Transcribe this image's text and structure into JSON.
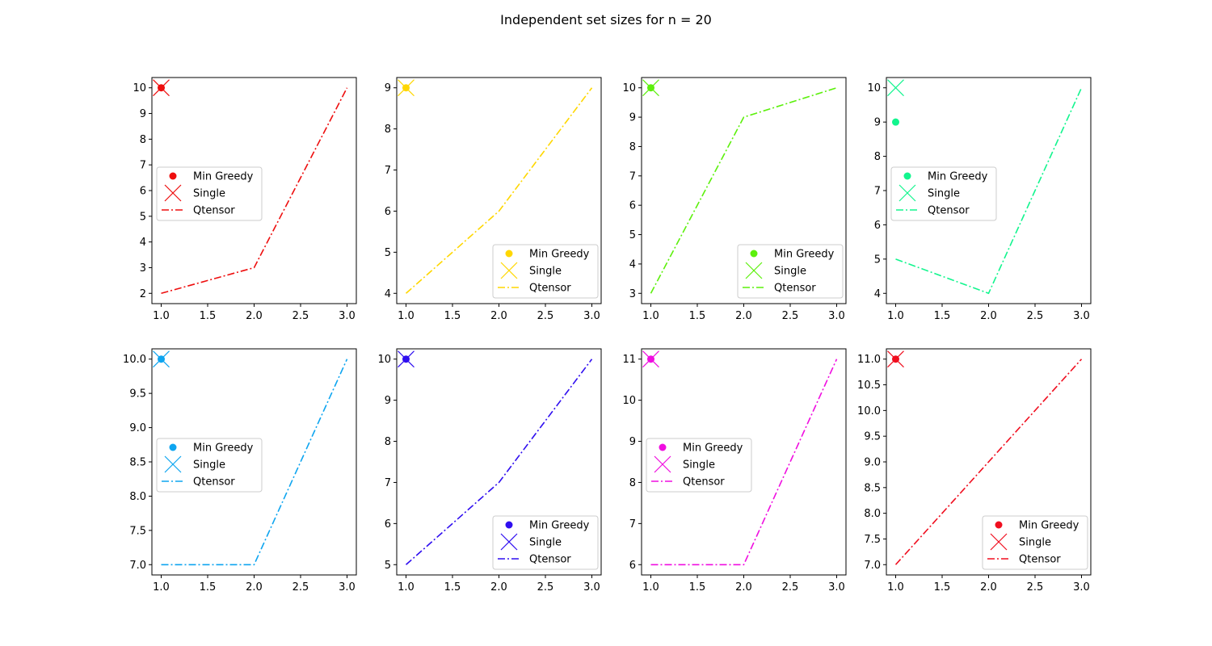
{
  "figure": {
    "suptitle": "Independent set sizes for n = 20"
  },
  "legend_labels": {
    "min_greedy": "Min Greedy",
    "single": "Single",
    "qtensor": "Qtensor"
  },
  "chart_data": [
    {
      "type": "line",
      "color": "#ee0e0e",
      "legend_position": "center-left",
      "x": [
        1.0,
        2.0,
        3.0
      ],
      "qtensor": [
        2,
        3,
        10
      ],
      "min_greedy": {
        "x": 1.0,
        "y": 10
      },
      "single": {
        "x": 1.0,
        "y": 10
      },
      "xlim": [
        0.9,
        3.1
      ],
      "ylim": [
        1.6,
        10.4
      ],
      "xticks": [
        1.0,
        1.5,
        2.0,
        2.5,
        3.0
      ],
      "xtick_labels": [
        "1.0",
        "1.5",
        "2.0",
        "2.5",
        "3.0"
      ],
      "yticks": [
        2,
        3,
        4,
        5,
        6,
        7,
        8,
        9,
        10
      ],
      "ytick_labels": [
        "2",
        "3",
        "4",
        "5",
        "6",
        "7",
        "8",
        "9",
        "10"
      ]
    },
    {
      "type": "line",
      "color": "#ffd700",
      "legend_position": "lower-right",
      "x": [
        1.0,
        2.0,
        3.0
      ],
      "qtensor": [
        4,
        6,
        9
      ],
      "min_greedy": {
        "x": 1.0,
        "y": 9
      },
      "single": {
        "x": 1.0,
        "y": 9
      },
      "xlim": [
        0.9,
        3.1
      ],
      "ylim": [
        3.75,
        9.25
      ],
      "xticks": [
        1.0,
        1.5,
        2.0,
        2.5,
        3.0
      ],
      "xtick_labels": [
        "1.0",
        "1.5",
        "2.0",
        "2.5",
        "3.0"
      ],
      "yticks": [
        4,
        5,
        6,
        7,
        8,
        9
      ],
      "ytick_labels": [
        "4",
        "5",
        "6",
        "7",
        "8",
        "9"
      ]
    },
    {
      "type": "line",
      "color": "#5cf00c",
      "legend_position": "lower-right",
      "x": [
        1.0,
        2.0,
        3.0
      ],
      "qtensor": [
        3,
        9,
        10
      ],
      "min_greedy": {
        "x": 1.0,
        "y": 10
      },
      "single": {
        "x": 1.0,
        "y": 10
      },
      "xlim": [
        0.9,
        3.1
      ],
      "ylim": [
        2.65,
        10.35
      ],
      "xticks": [
        1.0,
        1.5,
        2.0,
        2.5,
        3.0
      ],
      "xtick_labels": [
        "1.0",
        "1.5",
        "2.0",
        "2.5",
        "3.0"
      ],
      "yticks": [
        3,
        4,
        5,
        6,
        7,
        8,
        9,
        10
      ],
      "ytick_labels": [
        "3",
        "4",
        "5",
        "6",
        "7",
        "8",
        "9",
        "10"
      ]
    },
    {
      "type": "line",
      "color": "#12f58e",
      "legend_position": "center-left",
      "x": [
        1.0,
        2.0,
        3.0
      ],
      "qtensor": [
        5,
        4,
        10
      ],
      "min_greedy": {
        "x": 1.0,
        "y": 9
      },
      "single": {
        "x": 1.0,
        "y": 10
      },
      "xlim": [
        0.9,
        3.1
      ],
      "ylim": [
        3.7,
        10.3
      ],
      "xticks": [
        1.0,
        1.5,
        2.0,
        2.5,
        3.0
      ],
      "xtick_labels": [
        "1.0",
        "1.5",
        "2.0",
        "2.5",
        "3.0"
      ],
      "yticks": [
        4,
        5,
        6,
        7,
        8,
        9,
        10
      ],
      "ytick_labels": [
        "4",
        "5",
        "6",
        "7",
        "8",
        "9",
        "10"
      ]
    },
    {
      "type": "line",
      "color": "#0ea5f0",
      "legend_position": "center-left",
      "x": [
        1.0,
        2.0,
        3.0
      ],
      "qtensor": [
        7.0,
        7.0,
        10.0
      ],
      "min_greedy": {
        "x": 1.0,
        "y": 10.0
      },
      "single": {
        "x": 1.0,
        "y": 10.0
      },
      "xlim": [
        0.9,
        3.1
      ],
      "ylim": [
        6.85,
        10.15
      ],
      "xticks": [
        1.0,
        1.5,
        2.0,
        2.5,
        3.0
      ],
      "xtick_labels": [
        "1.0",
        "1.5",
        "2.0",
        "2.5",
        "3.0"
      ],
      "yticks": [
        7.0,
        7.5,
        8.0,
        8.5,
        9.0,
        9.5,
        10.0
      ],
      "ytick_labels": [
        "7.0",
        "7.5",
        "8.0",
        "8.5",
        "9.0",
        "9.5",
        "10.0"
      ]
    },
    {
      "type": "line",
      "color": "#2f0ef0",
      "legend_position": "lower-right",
      "x": [
        1.0,
        2.0,
        3.0
      ],
      "qtensor": [
        5,
        7,
        10
      ],
      "min_greedy": {
        "x": 1.0,
        "y": 10
      },
      "single": {
        "x": 1.0,
        "y": 10
      },
      "xlim": [
        0.9,
        3.1
      ],
      "ylim": [
        4.75,
        10.25
      ],
      "xticks": [
        1.0,
        1.5,
        2.0,
        2.5,
        3.0
      ],
      "xtick_labels": [
        "1.0",
        "1.5",
        "2.0",
        "2.5",
        "3.0"
      ],
      "yticks": [
        5,
        6,
        7,
        8,
        9,
        10
      ],
      "ytick_labels": [
        "5",
        "6",
        "7",
        "8",
        "9",
        "10"
      ]
    },
    {
      "type": "line",
      "color": "#f00ee0",
      "legend_position": "center-left",
      "x": [
        1.0,
        2.0,
        3.0
      ],
      "qtensor": [
        6,
        6,
        11
      ],
      "min_greedy": {
        "x": 1.0,
        "y": 11
      },
      "single": {
        "x": 1.0,
        "y": 11
      },
      "xlim": [
        0.9,
        3.1
      ],
      "ylim": [
        5.75,
        11.25
      ],
      "xticks": [
        1.0,
        1.5,
        2.0,
        2.5,
        3.0
      ],
      "xtick_labels": [
        "1.0",
        "1.5",
        "2.0",
        "2.5",
        "3.0"
      ],
      "yticks": [
        6,
        7,
        8,
        9,
        10,
        11
      ],
      "ytick_labels": [
        "6",
        "7",
        "8",
        "9",
        "10",
        "11"
      ]
    },
    {
      "type": "line",
      "color": "#f00e1f",
      "legend_position": "lower-right",
      "x": [
        1.0,
        2.0,
        3.0
      ],
      "qtensor": [
        7.0,
        9.0,
        11.0
      ],
      "min_greedy": {
        "x": 1.0,
        "y": 11.0
      },
      "single": {
        "x": 1.0,
        "y": 11.0
      },
      "xlim": [
        0.9,
        3.1
      ],
      "ylim": [
        6.8,
        11.2
      ],
      "xticks": [
        1.0,
        1.5,
        2.0,
        2.5,
        3.0
      ],
      "xtick_labels": [
        "1.0",
        "1.5",
        "2.0",
        "2.5",
        "3.0"
      ],
      "yticks": [
        7.0,
        7.5,
        8.0,
        8.5,
        9.0,
        9.5,
        10.0,
        10.5,
        11.0
      ],
      "ytick_labels": [
        "7.0",
        "7.5",
        "8.0",
        "8.5",
        "9.0",
        "9.5",
        "10.0",
        "10.5",
        "11.0"
      ]
    }
  ]
}
